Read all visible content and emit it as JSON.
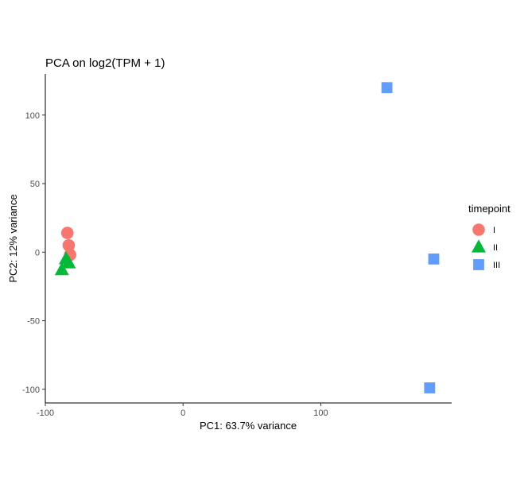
{
  "chart_data": {
    "type": "scatter",
    "title": "PCA on log2(TPM + 1)",
    "xlabel": "PC1: 63.7% variance",
    "ylabel": "PC2: 12% variance",
    "xlim": [
      -100,
      195
    ],
    "ylim": [
      -110,
      130
    ],
    "x_ticks": [
      -100,
      0,
      100
    ],
    "y_ticks": [
      -100,
      -50,
      0,
      50,
      100
    ],
    "x_tick_labels": [
      "-100",
      "0",
      "100"
    ],
    "y_tick_labels": [
      "-100",
      "-50",
      "0",
      "50",
      "100"
    ],
    "grid": false,
    "legend": {
      "title": "timepoint",
      "position": "right"
    },
    "series": [
      {
        "name": "I",
        "shape": "circle",
        "color": "#F8766D",
        "points": [
          {
            "x": -84,
            "y": 14
          },
          {
            "x": -83,
            "y": 5
          },
          {
            "x": -82,
            "y": -2
          }
        ]
      },
      {
        "name": "II",
        "shape": "triangle",
        "color": "#00BA38",
        "points": [
          {
            "x": -85,
            "y": -5
          },
          {
            "x": -83,
            "y": -8
          },
          {
            "x": -88,
            "y": -13
          }
        ]
      },
      {
        "name": "III",
        "shape": "square",
        "color": "#619CFF",
        "points": [
          {
            "x": 148,
            "y": 120
          },
          {
            "x": 182,
            "y": -5
          },
          {
            "x": 179,
            "y": -99
          }
        ]
      }
    ]
  }
}
